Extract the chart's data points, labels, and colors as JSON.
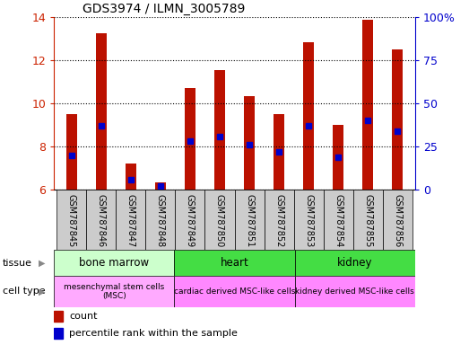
{
  "title": "GDS3974 / ILMN_3005789",
  "samples": [
    "GSM787845",
    "GSM787846",
    "GSM787847",
    "GSM787848",
    "GSM787849",
    "GSM787850",
    "GSM787851",
    "GSM787852",
    "GSM787853",
    "GSM787854",
    "GSM787855",
    "GSM787856"
  ],
  "counts": [
    9.5,
    13.25,
    7.2,
    6.35,
    10.7,
    11.55,
    10.35,
    9.5,
    12.85,
    9.0,
    13.9,
    12.5
  ],
  "percentile_ranks_pct": [
    20,
    37,
    6,
    2,
    28,
    31,
    26,
    22,
    37,
    19,
    40,
    34
  ],
  "ylim_left": [
    6,
    14
  ],
  "ylim_right": [
    0,
    100
  ],
  "yticks_left": [
    6,
    8,
    10,
    12,
    14
  ],
  "yticks_right": [
    0,
    25,
    50,
    75,
    100
  ],
  "ytick_labels_right": [
    "0",
    "25",
    "50",
    "75",
    "100%"
  ],
  "bar_color": "#bb1100",
  "percentile_color": "#0000cc",
  "bar_width": 0.35,
  "grid_linestyle": "dotted",
  "axis_color_left": "#cc2200",
  "axis_color_right": "#0000cc",
  "tissue_info": [
    {
      "label": "bone marrow",
      "start": 0,
      "end": 4,
      "color": "#ccffcc"
    },
    {
      "label": "heart",
      "start": 4,
      "end": 8,
      "color": "#44dd44"
    },
    {
      "label": "kidney",
      "start": 8,
      "end": 12,
      "color": "#44dd44"
    }
  ],
  "celltype_info": [
    {
      "label": "mesenchymal stem cells\n(MSC)",
      "start": 0,
      "end": 4,
      "color": "#ffaaff"
    },
    {
      "label": "cardiac derived MSC-like cells",
      "start": 4,
      "end": 8,
      "color": "#ff88ff"
    },
    {
      "label": "kidney derived MSC-like cells",
      "start": 8,
      "end": 12,
      "color": "#ff88ff"
    }
  ],
  "sample_bg_color": "#cccccc",
  "fig_width": 5.23,
  "fig_height": 3.84,
  "fig_dpi": 100
}
